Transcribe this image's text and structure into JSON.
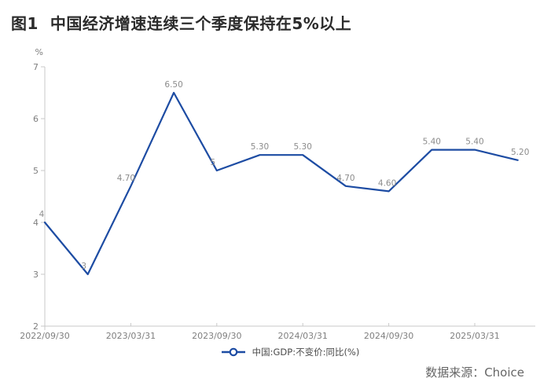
{
  "title": "图1  中国经济增速连续三个季度保持在5%以上",
  "legend": {
    "label": "中国:GDP:不变价:同比(%)"
  },
  "footer": {
    "source": "数据来源：Choice"
  },
  "chart_data": {
    "type": "line",
    "title": "中国经济增速连续三个季度保持在5%以上",
    "x": [
      "2022/09/30",
      "2022/12/31",
      "2023/03/31",
      "2023/06/30",
      "2023/09/30",
      "2023/12/31",
      "2024/03/31",
      "2024/06/30",
      "2024/09/30",
      "2024/12/31",
      "2025/03/31",
      "2025/06/30"
    ],
    "series": [
      {
        "name": "中国:GDP:不变价:同比(%)",
        "values": [
          4,
          3,
          4.7,
          6.5,
          5,
          5.3,
          5.3,
          4.7,
          4.6,
          5.4,
          5.4,
          5.2
        ]
      }
    ],
    "point_labels": [
      "4",
      "3",
      "4.70",
      "6.50",
      "5",
      "5.30",
      "5.30",
      "4.70",
      "4.60",
      "5.40",
      "5.40",
      "5.20"
    ],
    "x_tick_labels": [
      "2022/09/30",
      "2023/03/31",
      "2023/09/30",
      "2024/03/31",
      "2024/09/30",
      "2025/03/31"
    ],
    "y_ticks": [
      7,
      6,
      5,
      4,
      3,
      2
    ],
    "ylim": [
      2,
      7
    ],
    "y_unit": "%",
    "grid": false,
    "legend_position": "bottom",
    "line_color": "#1d4ca3",
    "label_color": "#8c8c8c",
    "axis_color": "#c9c9c9",
    "tick_text_color": "#7f7f7f"
  }
}
